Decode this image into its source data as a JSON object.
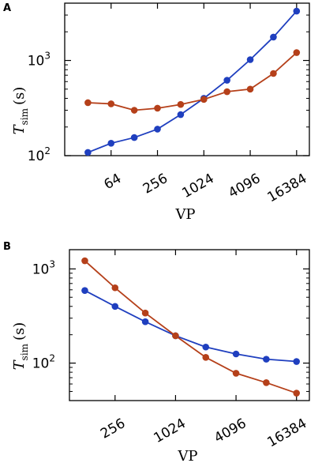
{
  "colors": {
    "blue": "#1f3fbf",
    "red": "#b5401a",
    "axis": "#000000"
  },
  "chart_data": [
    {
      "panel": "A",
      "type": "line",
      "xlabel": "VP",
      "ylabel_main": "T",
      "ylabel_sub": "sim",
      "ylabel_unit": "(s)",
      "xscale": "log2",
      "yscale": "log10",
      "xlim": [
        16,
        24000
      ],
      "ylim": [
        100,
        4000
      ],
      "xticks": [
        64,
        256,
        1024,
        4096,
        16384
      ],
      "xtick_labels": [
        "64",
        "256",
        "1024",
        "4096",
        "16384"
      ],
      "yticks": [
        100,
        1000
      ],
      "ytick_labels": [
        {
          "base": "10",
          "exp": "2"
        },
        {
          "base": "10",
          "exp": "3"
        }
      ],
      "series": [
        {
          "color": "blue",
          "x": [
            32,
            64,
            128,
            256,
            512,
            1024,
            2048,
            4096,
            8192,
            16384
          ],
          "y": [
            108,
            135,
            155,
            190,
            270,
            400,
            620,
            1020,
            1760,
            3300
          ]
        },
        {
          "color": "red",
          "x": [
            32,
            64,
            128,
            256,
            512,
            1024,
            2048,
            4096,
            8192,
            16384
          ],
          "y": [
            360,
            350,
            300,
            315,
            345,
            390,
            470,
            500,
            730,
            1210
          ]
        }
      ]
    },
    {
      "panel": "B",
      "type": "line",
      "xlabel": "VP",
      "ylabel_main": "T",
      "ylabel_sub": "sim",
      "ylabel_unit": "(s)",
      "xscale": "log2",
      "yscale": "log10",
      "xlim": [
        90,
        22000
      ],
      "ylim": [
        40,
        1600
      ],
      "xticks": [
        256,
        1024,
        4096,
        16384
      ],
      "xtick_labels": [
        "256",
        "1024",
        "4096",
        "16384"
      ],
      "yticks": [
        100,
        1000
      ],
      "ytick_labels": [
        {
          "base": "10",
          "exp": "2"
        },
        {
          "base": "10",
          "exp": "3"
        }
      ],
      "series": [
        {
          "color": "blue",
          "x": [
            128,
            256,
            512,
            1024,
            2048,
            4096,
            8192,
            16384
          ],
          "y": [
            590,
            400,
            275,
            195,
            148,
            125,
            110,
            104
          ]
        },
        {
          "color": "red",
          "x": [
            128,
            256,
            512,
            1024,
            2048,
            4096,
            8192,
            16384
          ],
          "y": [
            1220,
            630,
            340,
            195,
            115,
            78,
            62,
            48
          ]
        }
      ]
    }
  ]
}
